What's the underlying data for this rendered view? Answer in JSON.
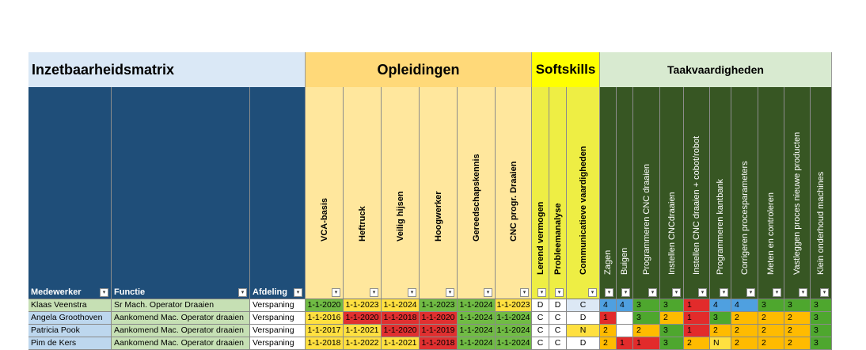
{
  "title": "Inzetbaarheidsmatrix",
  "groups": {
    "opleidingen": "Opleidingen",
    "softskills": "Softskills",
    "taakvaardigheden": "Taakvaardigheden"
  },
  "headers": {
    "medewerker": "Medewerker",
    "functie": "Functie",
    "afdeling": "Afdeling"
  },
  "opleidingen": [
    "VCA-basis",
    "Heftruck",
    "Veilig hijsen",
    "Hoogwerker",
    "Gereedschapskennis",
    "CNC progr. Draaien"
  ],
  "softskills": [
    "Lerend vermogen",
    "Probleemanalyse",
    "Communicatieve vaardigheden"
  ],
  "taken": [
    "Zagen",
    "Buigen",
    "Programmeren CNC draaien",
    "Instellen CNCdraaien",
    "Instellen CNC draaien + cobot/robot",
    "Programmeren kantbank",
    "Corrigeren procesparameters",
    "Meten en controleren",
    "Vastleggen proces nieuwe producten",
    "Klein onderhoud machines"
  ],
  "colors": {
    "title_bg": "#dae8f6",
    "header_blue": "#1f4e79",
    "opl_group": "#ffd979",
    "opl_col": "#ffe79d",
    "soft_group": "#ffff00",
    "soft_col": "#eeee44",
    "taak_group": "#d8ead0",
    "taak_col": "#375623",
    "row_a": "#c6e0b4",
    "row_b": "#bdd7ee",
    "green": "#4ea72e",
    "green_light": "#90d050",
    "yellow": "#ffe040",
    "red": "#e22b2b",
    "orange": "#ffbb00",
    "blue": "#4fa0e0",
    "date_green": "#70bb44",
    "date_yellow": "#ffe040",
    "date_red": "#e03030",
    "white": "#ffffff",
    "letter_blue": "#dce8f5"
  },
  "rows": [
    {
      "medewerker": "Klaas Veenstra",
      "functie": "Sr Mach. Operator Draaien",
      "afdeling": "Verspaning",
      "opleidingen": [
        {
          "v": "1-1-2020",
          "c": "date_green"
        },
        {
          "v": "1-1-2023",
          "c": "date_yellow"
        },
        {
          "v": "1-1-2024",
          "c": "date_yellow"
        },
        {
          "v": "1-1-2023",
          "c": "date_green"
        },
        {
          "v": "1-1-2024",
          "c": "date_green"
        },
        {
          "v": "1-1-2023",
          "c": "date_yellow"
        }
      ],
      "softskills": [
        {
          "v": "D",
          "c": "white"
        },
        {
          "v": "D",
          "c": "white"
        },
        {
          "v": "C",
          "c": "letter_blue"
        }
      ],
      "taken": [
        {
          "v": "4",
          "c": "blue"
        },
        {
          "v": "4",
          "c": "blue"
        },
        {
          "v": "3",
          "c": "green"
        },
        {
          "v": "3",
          "c": "green"
        },
        {
          "v": "1",
          "c": "red"
        },
        {
          "v": "4",
          "c": "blue"
        },
        {
          "v": "4",
          "c": "blue"
        },
        {
          "v": "3",
          "c": "green"
        },
        {
          "v": "3",
          "c": "green"
        },
        {
          "v": "3",
          "c": "green"
        }
      ]
    },
    {
      "medewerker": "Angela Groothoven",
      "functie": "Aankomend Mac. Operator draaien",
      "afdeling": "Verspaning",
      "opleidingen": [
        {
          "v": "1-1-2016",
          "c": "date_yellow"
        },
        {
          "v": "1-1-2020",
          "c": "date_red"
        },
        {
          "v": "1-1-2018",
          "c": "date_red"
        },
        {
          "v": "1-1-2020",
          "c": "date_red"
        },
        {
          "v": "1-1-2024",
          "c": "date_green"
        },
        {
          "v": "1-1-2024",
          "c": "date_green"
        }
      ],
      "softskills": [
        {
          "v": "C",
          "c": "white"
        },
        {
          "v": "C",
          "c": "white"
        },
        {
          "v": "D",
          "c": "white"
        }
      ],
      "taken": [
        {
          "v": "1",
          "c": "red"
        },
        {
          "v": "",
          "c": "white"
        },
        {
          "v": "3",
          "c": "green"
        },
        {
          "v": "2",
          "c": "orange"
        },
        {
          "v": "1",
          "c": "red"
        },
        {
          "v": "3",
          "c": "green"
        },
        {
          "v": "2",
          "c": "orange"
        },
        {
          "v": "2",
          "c": "orange"
        },
        {
          "v": "2",
          "c": "orange"
        },
        {
          "v": "3",
          "c": "green"
        }
      ]
    },
    {
      "medewerker": "Patricia Pook",
      "functie": "Aankomend Mac. Operator draaien",
      "afdeling": "Verspaning",
      "opleidingen": [
        {
          "v": "1-1-2017",
          "c": "date_yellow"
        },
        {
          "v": "1-1-2021",
          "c": "date_yellow"
        },
        {
          "v": "1-1-2020",
          "c": "date_red"
        },
        {
          "v": "1-1-2019",
          "c": "date_red"
        },
        {
          "v": "1-1-2024",
          "c": "date_green"
        },
        {
          "v": "1-1-2024",
          "c": "date_green"
        }
      ],
      "softskills": [
        {
          "v": "C",
          "c": "white"
        },
        {
          "v": "C",
          "c": "white"
        },
        {
          "v": "N",
          "c": "yellow"
        }
      ],
      "taken": [
        {
          "v": "2",
          "c": "orange"
        },
        {
          "v": "",
          "c": "white"
        },
        {
          "v": "2",
          "c": "orange"
        },
        {
          "v": "3",
          "c": "green"
        },
        {
          "v": "1",
          "c": "red"
        },
        {
          "v": "2",
          "c": "orange"
        },
        {
          "v": "2",
          "c": "orange"
        },
        {
          "v": "2",
          "c": "orange"
        },
        {
          "v": "2",
          "c": "orange"
        },
        {
          "v": "3",
          "c": "green"
        }
      ]
    },
    {
      "medewerker": "Pim de Kers",
      "functie": "Aankomend Mac. Operator draaien",
      "afdeling": "Verspaning",
      "opleidingen": [
        {
          "v": "1-1-2018",
          "c": "date_yellow"
        },
        {
          "v": "1-1-2022",
          "c": "date_yellow"
        },
        {
          "v": "1-1-2021",
          "c": "date_yellow"
        },
        {
          "v": "1-1-2018",
          "c": "date_red"
        },
        {
          "v": "1-1-2024",
          "c": "date_green"
        },
        {
          "v": "1-1-2024",
          "c": "date_green"
        }
      ],
      "softskills": [
        {
          "v": "C",
          "c": "white"
        },
        {
          "v": "C",
          "c": "white"
        },
        {
          "v": "D",
          "c": "white"
        }
      ],
      "taken": [
        {
          "v": "2",
          "c": "orange"
        },
        {
          "v": "1",
          "c": "red"
        },
        {
          "v": "1",
          "c": "red"
        },
        {
          "v": "3",
          "c": "green"
        },
        {
          "v": "2",
          "c": "orange"
        },
        {
          "v": "N",
          "c": "yellow"
        },
        {
          "v": "2",
          "c": "orange"
        },
        {
          "v": "2",
          "c": "orange"
        },
        {
          "v": "2",
          "c": "orange"
        },
        {
          "v": "3",
          "c": "green"
        }
      ]
    }
  ]
}
